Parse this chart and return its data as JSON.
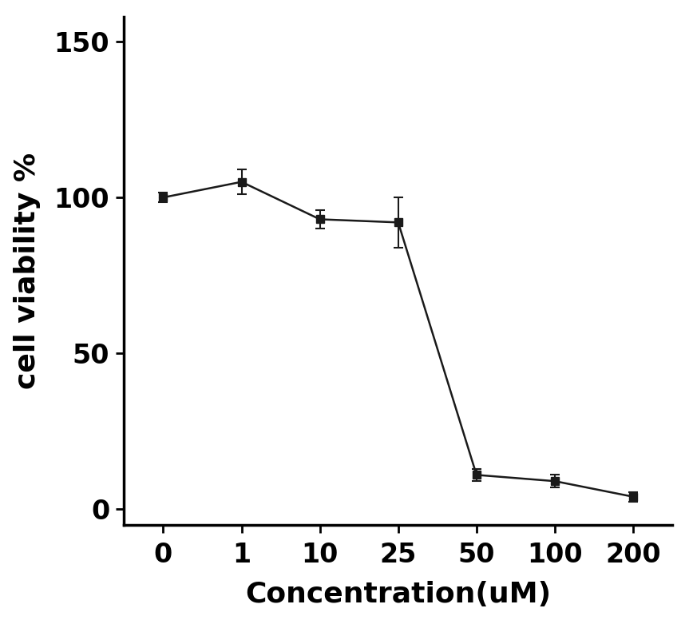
{
  "x_values": [
    0,
    1,
    10,
    25,
    50,
    100,
    200
  ],
  "y_values": [
    100,
    105,
    93,
    92,
    11,
    9,
    4
  ],
  "y_errors": [
    1.5,
    4,
    3,
    8,
    2,
    2,
    1.5
  ],
  "x_label": "Concentration(uM)",
  "y_label": "cell viability %",
  "x_ticklabels": [
    "0",
    "1",
    "10",
    "25",
    "50",
    "100",
    "200"
  ],
  "y_ticks": [
    0,
    50,
    100,
    150
  ],
  "ylim": [
    -5,
    158
  ],
  "line_color": "#1a1a1a",
  "marker": "s",
  "marker_size": 7,
  "line_width": 1.8,
  "background_color": "#ffffff",
  "x_label_fontsize": 26,
  "y_label_fontsize": 26,
  "tick_fontsize": 24,
  "x_label_fontweight": "bold",
  "y_label_fontweight": "bold",
  "tick_fontweight": "bold",
  "capsize": 4
}
